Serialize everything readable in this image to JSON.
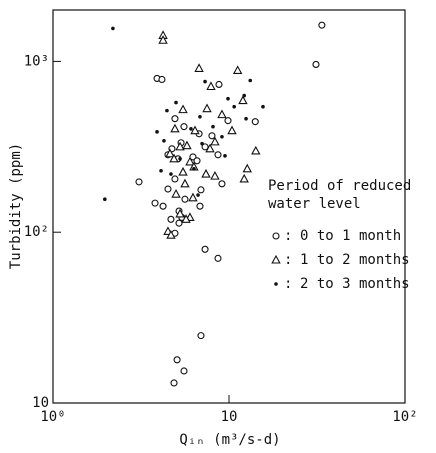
{
  "chart_data": {
    "type": "scatter",
    "xlabel": "Qᵢₙ (m³/s-d)",
    "ylabel": "Turbidity (ppm)",
    "xlog": true,
    "ylog": true,
    "xlim": [
      1,
      100
    ],
    "ylim": [
      10,
      2000
    ],
    "xticks": [
      {
        "value": 1,
        "label": "10⁰"
      },
      10,
      {
        "value": 100,
        "label": "10²"
      }
    ],
    "yticks": [
      10,
      {
        "value": 100,
        "label": "10²"
      },
      {
        "value": 1000,
        "label": "10³"
      }
    ],
    "legend_title": [
      "Period of reduced",
      "water level"
    ],
    "legend_separator": ":",
    "series": [
      {
        "name": "0 to 1 month",
        "marker": "circle",
        "color": "#111",
        "x": [
          33.7,
          31.2,
          3.9,
          4.16,
          8.77,
          4.93,
          9.87,
          14.1,
          5.55,
          6.76,
          8.0,
          7.31,
          4.74,
          5.34,
          4.5,
          5.13,
          6.24,
          8.66,
          6.58,
          3.08,
          4.93,
          9.12,
          4.5,
          6.93,
          5.62,
          3.8,
          4.22,
          6.84,
          5.2,
          4.68,
          5.4,
          5.2,
          4.93,
          7.31,
          8.66,
          6.93,
          5.07,
          5.55,
          4.87
        ],
        "values": [
          1630,
          960,
          795,
          784,
          733,
          462,
          450,
          444,
          415,
          377,
          367,
          316,
          308,
          334,
          284,
          269,
          276,
          284,
          262,
          197,
          205,
          192,
          179,
          177,
          156,
          148,
          142,
          142,
          133,
          119,
          122,
          113,
          98.6,
          79.4,
          70.3,
          24.8,
          17.9,
          15.4,
          13.1
        ]
      },
      {
        "name": "1 to 2 months",
        "marker": "triangle",
        "color": "#111",
        "x": [
          4.22,
          4.22,
          6.76,
          11.2,
          7.9,
          12.0,
          5.48,
          7.5,
          9.12,
          4.93,
          10.4,
          6.41,
          8.32,
          5.27,
          5.77,
          7.8,
          14.2,
          4.62,
          4.87,
          6.0,
          6.32,
          12.7,
          5.48,
          7.4,
          8.32,
          12.2,
          5.62,
          5.0,
          6.24,
          5.27,
          6.0,
          5.7,
          4.5,
          4.68
        ],
        "values": [
          1420,
          1330,
          910,
          885,
          713,
          590,
          522,
          529,
          488,
          403,
          393,
          393,
          338,
          316,
          321,
          308,
          299,
          288,
          269,
          258,
          241,
          235,
          225,
          219,
          213,
          205,
          192,
          167,
          159,
          128,
          122,
          119,
          101,
          96
        ]
      },
      {
        "name": "2 to 3 months",
        "marker": "dot",
        "color": "#111",
        "x": [
          2.19,
          1.97,
          13.2,
          7.31,
          9.87,
          12.2,
          15.6,
          6.84,
          8.11,
          12.5,
          6.08,
          7.03,
          3.9,
          4.44,
          5.0,
          10.7,
          9.12,
          6.32,
          5.27,
          4.68,
          4.27,
          6.67,
          4.11,
          9.49
        ],
        "values": [
          1560,
          156,
          773,
          762,
          605,
          631,
          543,
          474,
          415,
          462,
          403,
          330,
          387,
          515,
          574,
          543,
          362,
          235,
          269,
          219,
          343,
          165,
          229,
          280
        ]
      }
    ]
  }
}
